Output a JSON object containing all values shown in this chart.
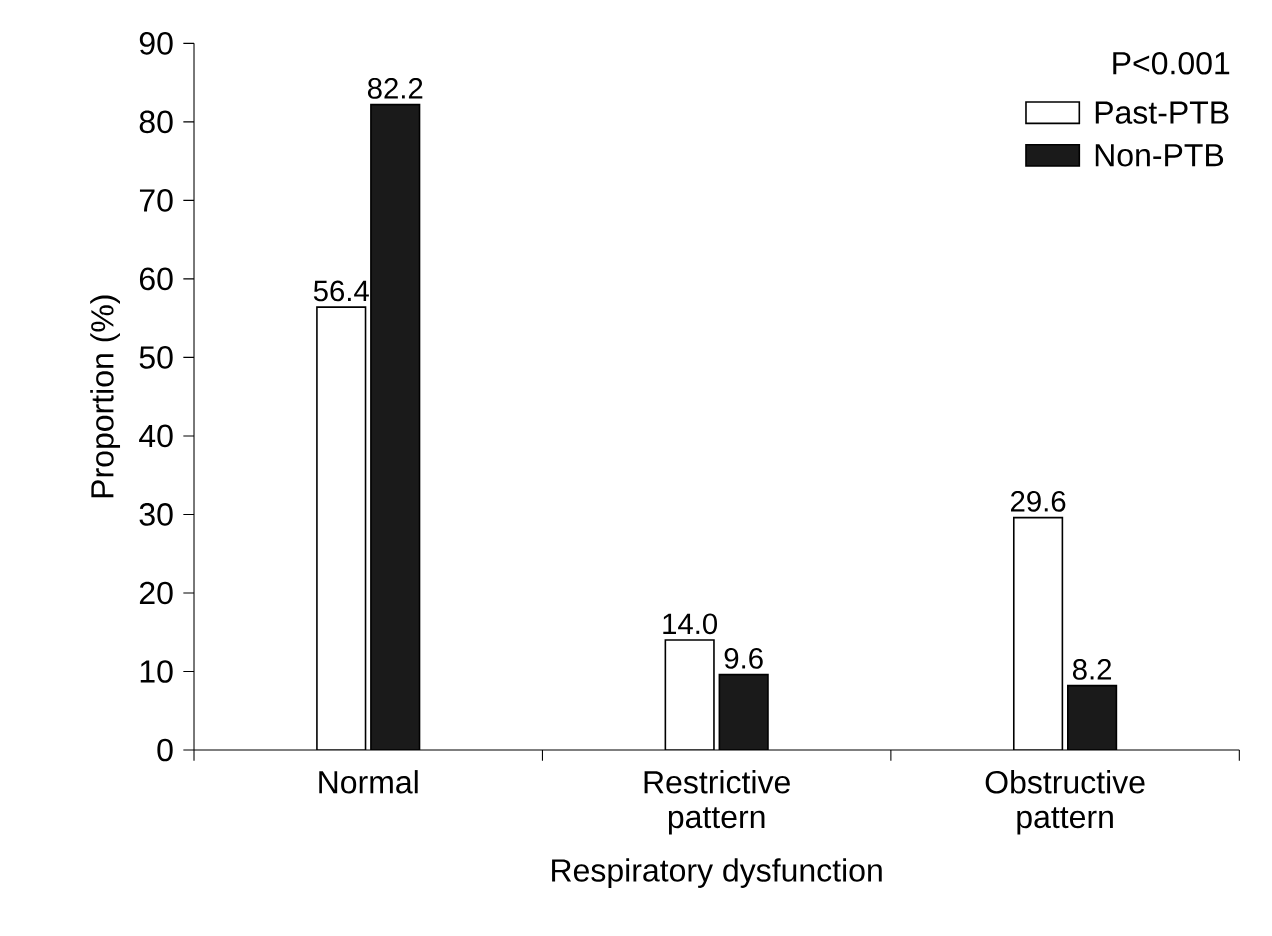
{
  "chart_data": {
    "type": "bar",
    "xlabel": "Respiratory dysfunction",
    "ylabel": "Proportion (%)",
    "legend_title": "P<0.001",
    "legend": "top right",
    "categories": [
      "Normal",
      "Restrictive pattern",
      "Obstructive pattern"
    ],
    "series": [
      {
        "name": "Past-PTB",
        "color": "#ffffff",
        "values": [
          56.4,
          14.0,
          29.6
        ],
        "value_labels": [
          "56.4",
          "14.0",
          "29.6"
        ]
      },
      {
        "name": "Non-PTB",
        "color": "#1a1a1a",
        "values": [
          82.2,
          9.6,
          8.2
        ],
        "value_labels": [
          "82.2",
          "9.6",
          "8.2"
        ]
      }
    ],
    "ylim": [
      0,
      90
    ],
    "yticks": [
      0,
      10,
      20,
      30,
      40,
      50,
      60,
      70,
      80,
      90
    ]
  }
}
